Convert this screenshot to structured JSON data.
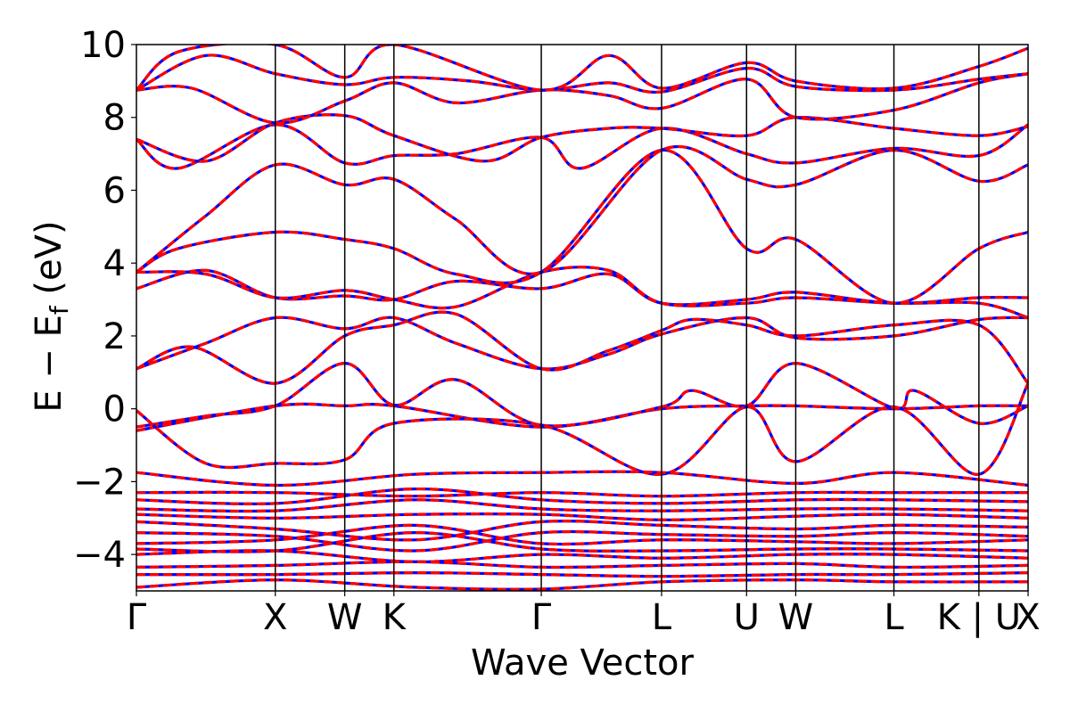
{
  "chart_data": {
    "type": "line",
    "xlabel": "Wave Vector",
    "ylabel": "E − E",
    "ylabel_sub": "f",
    "ylabel_unit": "(eV)",
    "ylim": [
      -5,
      10
    ],
    "yticks": [
      -4,
      -2,
      0,
      2,
      4,
      6,
      8,
      10
    ],
    "yticklabels": [
      "−4",
      "−2",
      "0",
      "2",
      "4",
      "6",
      "8",
      "10"
    ],
    "kpath": [
      {
        "label": "Γ",
        "x": 0.0
      },
      {
        "label": "X",
        "x": 1.0
      },
      {
        "label": "W",
        "x": 1.5
      },
      {
        "label": "K",
        "x": 1.854
      },
      {
        "label": "Γ",
        "x": 2.915
      },
      {
        "label": "L",
        "x": 3.781
      },
      {
        "label": "U",
        "x": 4.393
      },
      {
        "label": "W",
        "x": 4.747
      },
      {
        "label": "L",
        "x": 5.454
      },
      {
        "label": "K | U",
        "x": 6.066
      },
      {
        "label": "X",
        "x": 6.42
      }
    ],
    "grid": false,
    "legend": "none",
    "series_styles": [
      {
        "color": "#0000ff",
        "style": "solid"
      },
      {
        "color": "#ff0000",
        "style": "dashed"
      }
    ],
    "bands": [
      [
        [
          0,
          -0.6
        ],
        [
          1.0,
          0.08
        ],
        [
          1.5,
          0.08
        ],
        [
          1.854,
          0.08
        ],
        [
          2.915,
          -0.5
        ],
        [
          3.781,
          0.0
        ],
        [
          4.393,
          0.08
        ],
        [
          4.747,
          0.08
        ],
        [
          5.454,
          0.0
        ],
        [
          6.066,
          0.08
        ],
        [
          6.42,
          0.08
        ]
      ],
      [
        [
          0,
          -0.5
        ],
        [
          0.5,
          -0.2
        ],
        [
          1.0,
          0.08
        ],
        [
          1.5,
          1.25
        ],
        [
          1.854,
          0.1
        ],
        [
          2.3,
          0.8
        ],
        [
          2.915,
          -0.45
        ],
        [
          3.781,
          0.05
        ],
        [
          4.0,
          0.5
        ],
        [
          4.393,
          0.08
        ],
        [
          4.747,
          1.25
        ],
        [
          5.454,
          0.02
        ],
        [
          5.6,
          0.5
        ],
        [
          6.066,
          -0.4
        ],
        [
          6.42,
          0.08
        ]
      ],
      [
        [
          0,
          -0.05
        ],
        [
          0.5,
          -1.5
        ],
        [
          1.0,
          -1.5
        ],
        [
          1.5,
          -1.4
        ],
        [
          1.854,
          -0.4
        ],
        [
          2.915,
          -0.45
        ],
        [
          3.781,
          -1.8
        ],
        [
          4.393,
          0.05
        ],
        [
          4.747,
          -1.45
        ],
        [
          5.454,
          0.05
        ],
        [
          6.066,
          -1.8
        ],
        [
          6.42,
          0.7
        ]
      ],
      [
        [
          0,
          1.1
        ],
        [
          0.5,
          1.8
        ],
        [
          1.0,
          2.5
        ],
        [
          1.5,
          2.2
        ],
        [
          1.854,
          2.5
        ],
        [
          2.3,
          1.8
        ],
        [
          2.915,
          1.1
        ],
        [
          3.4,
          1.5
        ],
        [
          3.781,
          2.05
        ],
        [
          4.393,
          2.5
        ],
        [
          4.747,
          1.95
        ],
        [
          5.454,
          2.0
        ],
        [
          6.066,
          2.45
        ],
        [
          6.42,
          2.5
        ]
      ],
      [
        [
          0,
          1.1
        ],
        [
          0.4,
          1.7
        ],
        [
          1.0,
          0.7
        ],
        [
          1.5,
          2.0
        ],
        [
          1.854,
          2.3
        ],
        [
          2.3,
          2.6
        ],
        [
          2.915,
          1.1
        ],
        [
          3.4,
          1.6
        ],
        [
          3.781,
          2.15
        ],
        [
          4.0,
          2.45
        ],
        [
          4.393,
          2.3
        ],
        [
          4.747,
          2.0
        ],
        [
          5.454,
          2.3
        ],
        [
          6.066,
          2.3
        ],
        [
          6.42,
          0.7
        ]
      ],
      [
        [
          0,
          3.3
        ],
        [
          0.5,
          3.8
        ],
        [
          1.0,
          3.05
        ],
        [
          1.5,
          3.1
        ],
        [
          1.854,
          3.0
        ],
        [
          2.3,
          3.5
        ],
        [
          2.915,
          3.3
        ],
        [
          3.4,
          3.7
        ],
        [
          3.781,
          2.9
        ],
        [
          4.393,
          3.0
        ],
        [
          4.747,
          3.2
        ],
        [
          5.454,
          2.9
        ],
        [
          6.066,
          3.05
        ],
        [
          6.42,
          3.05
        ]
      ],
      [
        [
          0,
          3.75
        ],
        [
          0.5,
          3.7
        ],
        [
          1.0,
          3.05
        ],
        [
          1.5,
          3.25
        ],
        [
          1.854,
          3.0
        ],
        [
          2.3,
          2.8
        ],
        [
          2.915,
          3.75
        ],
        [
          3.4,
          3.8
        ],
        [
          3.781,
          2.9
        ],
        [
          4.393,
          2.9
        ],
        [
          4.747,
          3.05
        ],
        [
          5.454,
          2.9
        ],
        [
          6.066,
          2.9
        ],
        [
          6.42,
          2.5
        ]
      ],
      [
        [
          0,
          3.75
        ],
        [
          0.3,
          4.4
        ],
        [
          1.0,
          4.85
        ],
        [
          1.5,
          4.65
        ],
        [
          1.854,
          4.4
        ],
        [
          2.3,
          3.7
        ],
        [
          2.915,
          3.75
        ],
        [
          3.781,
          7.1
        ],
        [
          4.393,
          4.4
        ],
        [
          4.747,
          4.65
        ],
        [
          5.454,
          2.9
        ],
        [
          6.066,
          4.4
        ],
        [
          6.42,
          4.85
        ]
      ],
      [
        [
          0,
          3.75
        ],
        [
          0.5,
          5.3
        ],
        [
          1.0,
          6.7
        ],
        [
          1.5,
          6.15
        ],
        [
          1.854,
          6.3
        ],
        [
          2.3,
          5.2
        ],
        [
          2.915,
          3.75
        ],
        [
          3.781,
          7.1
        ],
        [
          4.393,
          6.3
        ],
        [
          4.747,
          6.15
        ],
        [
          5.454,
          7.1
        ],
        [
          6.066,
          6.25
        ],
        [
          6.42,
          6.7
        ]
      ],
      [
        [
          0,
          7.4
        ],
        [
          0.3,
          6.6
        ],
        [
          1.0,
          7.8
        ],
        [
          1.5,
          6.75
        ],
        [
          1.854,
          6.95
        ],
        [
          2.3,
          7.0
        ],
        [
          2.915,
          7.45
        ],
        [
          3.2,
          6.6
        ],
        [
          3.781,
          7.7
        ],
        [
          4.393,
          7.0
        ],
        [
          4.747,
          6.75
        ],
        [
          5.454,
          7.15
        ],
        [
          6.066,
          6.95
        ],
        [
          6.42,
          7.8
        ]
      ],
      [
        [
          0,
          7.4
        ],
        [
          0.5,
          6.8
        ],
        [
          1.0,
          7.85
        ],
        [
          1.5,
          8.05
        ],
        [
          1.854,
          7.5
        ],
        [
          2.5,
          6.8
        ],
        [
          2.915,
          7.45
        ],
        [
          3.4,
          7.7
        ],
        [
          3.781,
          7.7
        ],
        [
          4.393,
          7.5
        ],
        [
          4.747,
          8.0
        ],
        [
          5.454,
          7.7
        ],
        [
          6.066,
          7.5
        ],
        [
          6.42,
          7.75
        ]
      ],
      [
        [
          0,
          8.75
        ],
        [
          0.4,
          8.8
        ],
        [
          1.0,
          7.85
        ],
        [
          1.5,
          8.45
        ],
        [
          1.854,
          8.95
        ],
        [
          2.3,
          8.4
        ],
        [
          2.915,
          8.75
        ],
        [
          3.4,
          8.6
        ],
        [
          3.781,
          8.25
        ],
        [
          4.393,
          9.05
        ],
        [
          4.747,
          8.0
        ],
        [
          5.454,
          8.2
        ],
        [
          6.066,
          8.95
        ],
        [
          6.42,
          9.2
        ]
      ],
      [
        [
          0,
          8.75
        ],
        [
          0.5,
          9.7
        ],
        [
          1.0,
          9.2
        ],
        [
          1.5,
          8.9
        ],
        [
          1.854,
          9.1
        ],
        [
          2.4,
          9.0
        ],
        [
          2.915,
          8.75
        ],
        [
          3.4,
          8.95
        ],
        [
          3.781,
          8.7
        ],
        [
          4.393,
          9.35
        ],
        [
          4.747,
          8.85
        ],
        [
          5.454,
          8.75
        ],
        [
          6.066,
          9.05
        ],
        [
          6.42,
          9.2
        ]
      ],
      [
        [
          0,
          8.75
        ],
        [
          0.3,
          9.8
        ],
        [
          1.0,
          10.0
        ],
        [
          1.5,
          9.1
        ],
        [
          1.854,
          10.0
        ],
        [
          2.915,
          8.75
        ],
        [
          3.4,
          9.7
        ],
        [
          3.781,
          8.8
        ],
        [
          4.393,
          9.5
        ],
        [
          4.747,
          9.0
        ],
        [
          5.454,
          8.8
        ],
        [
          6.066,
          9.4
        ],
        [
          6.42,
          9.9
        ]
      ],
      [
        [
          0,
          -1.75
        ],
        [
          1.0,
          -2.1
        ],
        [
          2.0,
          -1.8
        ],
        [
          2.915,
          -1.75
        ],
        [
          3.781,
          -1.75
        ],
        [
          4.747,
          -2.05
        ],
        [
          5.454,
          -1.75
        ],
        [
          6.42,
          -2.1
        ]
      ],
      [
        [
          0,
          -2.3
        ],
        [
          1.0,
          -2.3
        ],
        [
          2.0,
          -2.4
        ],
        [
          2.915,
          -2.3
        ],
        [
          3.781,
          -2.4
        ],
        [
          4.747,
          -2.3
        ],
        [
          5.454,
          -2.3
        ],
        [
          6.42,
          -2.3
        ]
      ],
      [
        [
          0,
          -2.5
        ],
        [
          1.0,
          -2.6
        ],
        [
          2.0,
          -2.2
        ],
        [
          2.915,
          -2.5
        ],
        [
          3.781,
          -2.6
        ],
        [
          4.747,
          -2.5
        ],
        [
          5.454,
          -2.5
        ],
        [
          6.42,
          -2.55
        ]
      ],
      [
        [
          0,
          -2.75
        ],
        [
          1.0,
          -2.8
        ],
        [
          2.0,
          -2.5
        ],
        [
          2.915,
          -2.75
        ],
        [
          3.781,
          -2.8
        ],
        [
          4.747,
          -2.75
        ],
        [
          5.454,
          -2.75
        ],
        [
          6.42,
          -2.8
        ]
      ],
      [
        [
          0,
          -2.9
        ],
        [
          1.0,
          -3.0
        ],
        [
          2.0,
          -2.9
        ],
        [
          2.915,
          -2.9
        ],
        [
          3.781,
          -3.05
        ],
        [
          4.747,
          -2.95
        ],
        [
          5.454,
          -2.9
        ],
        [
          6.42,
          -3.0
        ]
      ],
      [
        [
          0,
          -3.1
        ],
        [
          1.0,
          -3.3
        ],
        [
          2.0,
          -3.6
        ],
        [
          2.915,
          -3.1
        ],
        [
          3.781,
          -3.2
        ],
        [
          4.747,
          -3.3
        ],
        [
          5.454,
          -3.2
        ],
        [
          6.42,
          -3.25
        ]
      ],
      [
        [
          0,
          -3.4
        ],
        [
          1.0,
          -3.5
        ],
        [
          2.0,
          -3.9
        ],
        [
          2.915,
          -3.4
        ],
        [
          3.781,
          -3.45
        ],
        [
          4.747,
          -3.5
        ],
        [
          5.454,
          -3.4
        ],
        [
          6.42,
          -3.5
        ]
      ],
      [
        [
          0,
          -3.7
        ],
        [
          1.0,
          -3.6
        ],
        [
          2.0,
          -3.2
        ],
        [
          2.915,
          -3.7
        ],
        [
          3.781,
          -3.6
        ],
        [
          4.747,
          -3.65
        ],
        [
          5.454,
          -3.7
        ],
        [
          6.42,
          -3.6
        ]
      ],
      [
        [
          0,
          -3.85
        ],
        [
          1.0,
          -3.9
        ],
        [
          2.0,
          -3.4
        ],
        [
          2.915,
          -3.85
        ],
        [
          3.781,
          -3.9
        ],
        [
          4.747,
          -3.85
        ],
        [
          5.454,
          -3.85
        ],
        [
          6.42,
          -3.9
        ]
      ],
      [
        [
          0,
          -4.0
        ],
        [
          1.0,
          -3.9
        ],
        [
          2.0,
          -4.2
        ],
        [
          2.915,
          -4.0
        ],
        [
          3.781,
          -4.1
        ],
        [
          4.747,
          -4.0
        ],
        [
          5.454,
          -4.0
        ],
        [
          6.42,
          -4.1
        ]
      ],
      [
        [
          0,
          -4.35
        ],
        [
          1.0,
          -4.3
        ],
        [
          2.0,
          -4.2
        ],
        [
          2.915,
          -4.35
        ],
        [
          3.781,
          -4.3
        ],
        [
          4.747,
          -4.25
        ],
        [
          5.454,
          -4.35
        ],
        [
          6.42,
          -4.3
        ]
      ],
      [
        [
          0,
          -4.55
        ],
        [
          1.0,
          -4.55
        ],
        [
          2.0,
          -4.5
        ],
        [
          2.915,
          -4.55
        ],
        [
          3.781,
          -4.6
        ],
        [
          4.747,
          -4.55
        ],
        [
          5.454,
          -4.55
        ],
        [
          6.42,
          -4.5
        ]
      ],
      [
        [
          0,
          -4.9
        ],
        [
          1.0,
          -4.7
        ],
        [
          2.0,
          -4.9
        ],
        [
          2.915,
          -4.95
        ],
        [
          3.781,
          -4.75
        ],
        [
          4.747,
          -4.7
        ],
        [
          5.454,
          -4.75
        ],
        [
          6.42,
          -4.75
        ]
      ]
    ]
  }
}
